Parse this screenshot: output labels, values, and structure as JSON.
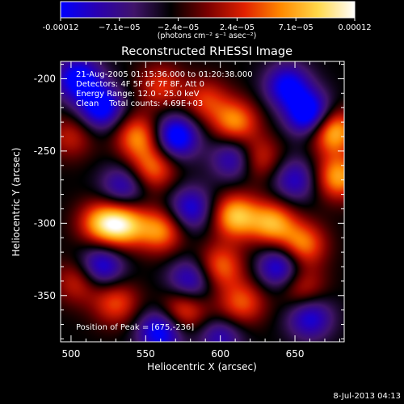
{
  "chart_data": {
    "type": "heatmap",
    "title": "Reconstructed RHESSI Image",
    "xlabel": "Heliocentric X (arcsec)",
    "ylabel": "Heliocentric Y (arcsec)",
    "xlim": [
      493,
      683
    ],
    "ylim": [
      -382,
      -188
    ],
    "x_ticks": [
      500,
      550,
      600,
      650
    ],
    "y_ticks": [
      -200,
      -250,
      -300,
      -350
    ],
    "colorbar": {
      "ticks": [
        "-0.00012",
        "−7.1e−05",
        "−2.4e−05",
        "2.4e−05",
        "7.1e−05",
        "0.00012"
      ],
      "unit_label": "(photons cm⁻² s⁻¹ asec⁻²)",
      "vmin": -0.00012,
      "vmax": 0.00012,
      "colormap": [
        "#0000ff",
        "#2a00b0",
        "#40146a",
        "#000000",
        "#7a0000",
        "#e02000",
        "#ff8a00",
        "#ffd84a",
        "#ffffff"
      ]
    },
    "annotations": [
      "21-Aug-2005 01:15:36.000 to 01:20:38.000",
      "Detectors: 4F 5F 6F 7F 8F, Att 0",
      "Energy Range: 12.0 - 25.0 keV",
      "Clean    Total counts: 4.69E+03"
    ],
    "peak_label": "Position of Peak = [675,-236]",
    "sources": [
      {
        "x": 675,
        "y": -236,
        "value": 0.00012
      },
      {
        "x": 679,
        "y": -268,
        "value": 0.0001
      },
      {
        "x": 535,
        "y": -301,
        "value": 0.00011
      },
      {
        "x": 520,
        "y": -300,
        "value": 9e-05
      },
      {
        "x": 560,
        "y": -305,
        "value": 9e-05
      },
      {
        "x": 610,
        "y": -295,
        "value": 0.00011
      },
      {
        "x": 635,
        "y": -300,
        "value": 0.0001
      },
      {
        "x": 655,
        "y": -315,
        "value": 9e-05
      },
      {
        "x": 600,
        "y": -330,
        "value": 8e-05
      },
      {
        "x": 545,
        "y": -240,
        "value": 9e-05
      },
      {
        "x": 555,
        "y": -262,
        "value": 8e-05
      },
      {
        "x": 610,
        "y": -230,
        "value": 9e-05
      },
      {
        "x": 625,
        "y": -255,
        "value": 7e-05
      },
      {
        "x": 590,
        "y": -215,
        "value": 6e-05
      },
      {
        "x": 560,
        "y": -205,
        "value": 6e-05
      },
      {
        "x": 530,
        "y": -355,
        "value": 7e-05
      },
      {
        "x": 575,
        "y": -360,
        "value": 8e-05
      },
      {
        "x": 615,
        "y": -355,
        "value": 7e-05
      },
      {
        "x": 655,
        "y": -345,
        "value": 6e-05
      },
      {
        "x": 600,
        "y": -370,
        "value": 6e-05
      },
      {
        "x": 500,
        "y": -240,
        "value": 5e-05
      },
      {
        "x": 505,
        "y": -340,
        "value": 6e-05
      },
      {
        "x": 580,
        "y": -290,
        "value": -8e-05
      },
      {
        "x": 520,
        "y": -220,
        "value": -0.0001
      },
      {
        "x": 505,
        "y": -200,
        "value": -0.0001
      },
      {
        "x": 570,
        "y": -240,
        "value": -0.00011
      },
      {
        "x": 610,
        "y": -255,
        "value": -8e-05
      },
      {
        "x": 660,
        "y": -225,
        "value": -0.00012
      },
      {
        "x": 645,
        "y": -205,
        "value": -9e-05
      },
      {
        "x": 520,
        "y": -330,
        "value": -9e-05
      },
      {
        "x": 580,
        "y": -340,
        "value": -8e-05
      },
      {
        "x": 640,
        "y": -330,
        "value": -9e-05
      },
      {
        "x": 600,
        "y": -375,
        "value": -0.00011
      },
      {
        "x": 560,
        "y": -375,
        "value": -0.0001
      },
      {
        "x": 660,
        "y": -365,
        "value": -8e-05
      },
      {
        "x": 535,
        "y": -275,
        "value": -7e-05
      },
      {
        "x": 650,
        "y": -270,
        "value": -7e-05
      }
    ]
  },
  "footer": {
    "date": "8-Jul-2013 04:13"
  }
}
